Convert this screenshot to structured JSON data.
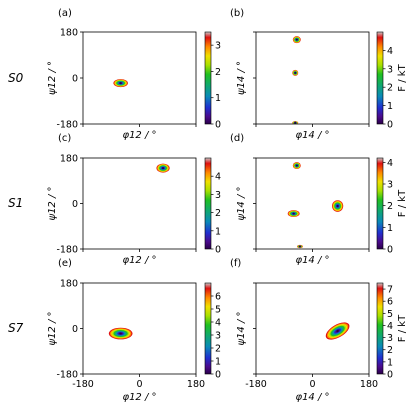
{
  "colorbar_label": "F / kT",
  "row_labels": [
    "S0",
    "S1",
    "S7"
  ],
  "xlabels": {
    "phi12": "φ12 / °",
    "phi14": "φ14 / °"
  },
  "ylabels": {
    "psi12": "ψ12 / °",
    "psi14": "ψ14 / °"
  },
  "chart_data": [
    {
      "type": "heatmap",
      "panel": "(a)",
      "row": "S0",
      "xlabel": "φ12 / °",
      "ylabel": "ψ12 / °",
      "xlim": [
        -180,
        180
      ],
      "ylim": [
        -180,
        180
      ],
      "x_ticks": [],
      "y_ticks": [
        "180",
        "0",
        "-180"
      ],
      "colorbar": {
        "min": 0,
        "max": 3.5,
        "ticks": [
          "0",
          "1",
          "2",
          "3"
        ]
      },
      "basins": [
        {
          "x": -60,
          "y": -20,
          "sx": 22,
          "sy": 15
        }
      ]
    },
    {
      "type": "heatmap",
      "panel": "(b)",
      "row": "S0",
      "xlabel": "φ14 / °",
      "ylabel": "ψ14 / °",
      "xlim": [
        -180,
        180
      ],
      "ylim": [
        -180,
        180
      ],
      "x_ticks": [],
      "y_ticks": [],
      "colorbar": {
        "min": 0,
        "max": 5,
        "ticks": [
          "0",
          "1",
          "2",
          "3",
          "4"
        ],
        "label": "F / kT"
      },
      "basins": [
        {
          "x": -50,
          "y": 150,
          "sx": 12,
          "sy": 13
        },
        {
          "x": -55,
          "y": 20,
          "sx": 9,
          "sy": 11
        },
        {
          "x": -55,
          "y": -175,
          "sx": 9,
          "sy": 6
        }
      ]
    },
    {
      "type": "heatmap",
      "panel": "(c)",
      "row": "S1",
      "xlabel": "φ12 / °",
      "ylabel": "ψ12 / °",
      "xlim": [
        -180,
        180
      ],
      "ylim": [
        -180,
        180
      ],
      "x_ticks": [],
      "y_ticks": [
        "180",
        "0",
        "-180"
      ],
      "colorbar": {
        "min": 0,
        "max": 5,
        "ticks": [
          "0",
          "1",
          "2",
          "3",
          "4"
        ]
      },
      "basins": [
        {
          "x": 75,
          "y": 140,
          "sx": 20,
          "sy": 17
        }
      ]
    },
    {
      "type": "heatmap",
      "panel": "(d)",
      "row": "S1",
      "xlabel": "φ14 / °",
      "ylabel": "ψ14 / °",
      "xlim": [
        -180,
        180
      ],
      "ylim": [
        -180,
        180
      ],
      "x_ticks": [],
      "y_ticks": [],
      "colorbar": {
        "min": 0,
        "max": 4.2,
        "ticks": [
          "0",
          "1",
          "2",
          "3",
          "4"
        ],
        "label": "F / kT"
      },
      "basins": [
        {
          "x": -50,
          "y": 150,
          "sx": 12,
          "sy": 13
        },
        {
          "x": -60,
          "y": -40,
          "sx": 18,
          "sy": 13
        },
        {
          "x": 80,
          "y": -10,
          "sx": 17,
          "sy": 22
        },
        {
          "x": -40,
          "y": -170,
          "sx": 9,
          "sy": 6
        }
      ]
    },
    {
      "type": "heatmap",
      "panel": "(e)",
      "row": "S7",
      "xlabel": "φ12 / °",
      "ylabel": "ψ12 / °",
      "xlim": [
        -180,
        180
      ],
      "ylim": [
        -180,
        180
      ],
      "x_ticks": [
        "-180",
        "0",
        "180"
      ],
      "y_ticks": [
        "180",
        "0",
        "-180"
      ],
      "colorbar": {
        "min": 0,
        "max": 7,
        "ticks": [
          "0",
          "1",
          "2",
          "3",
          "4",
          "5",
          "6"
        ]
      },
      "basins": [
        {
          "x": -60,
          "y": -20,
          "sx": 36,
          "sy": 22
        }
      ]
    },
    {
      "type": "heatmap",
      "panel": "(f)",
      "row": "S7",
      "xlabel": "φ14 / °",
      "ylabel": "ψ14 / °",
      "xlim": [
        -180,
        180
      ],
      "ylim": [
        -180,
        180
      ],
      "x_ticks": [
        "-180",
        "0",
        "180"
      ],
      "y_ticks": [],
      "colorbar": {
        "min": 0,
        "max": 7.5,
        "ticks": [
          "0",
          "1",
          "2",
          "3",
          "4",
          "5",
          "6",
          "7"
        ],
        "label": "F / kT"
      },
      "basins": [
        {
          "x": 80,
          "y": -10,
          "sx": 40,
          "sy": 24,
          "tilt": -30
        }
      ]
    }
  ]
}
